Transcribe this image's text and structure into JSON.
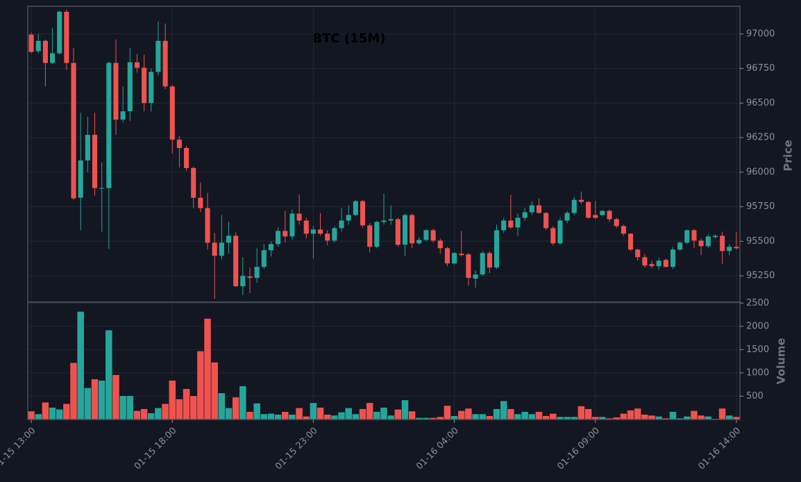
{
  "chart_data": {
    "type": "candlestick",
    "title": "BTC (15M)",
    "ylabel": "Price",
    "up_color": "#26a69a",
    "down_color": "#ef5350",
    "grid": true,
    "ylim": [
      95060,
      97200
    ],
    "yticks": [
      95250,
      95500,
      95750,
      96000,
      96250,
      96500,
      96750,
      97000
    ],
    "categories": [
      "01-15 13:00",
      null,
      null,
      null,
      null,
      null,
      null,
      null,
      null,
      null,
      null,
      null,
      null,
      null,
      null,
      null,
      null,
      null,
      null,
      null,
      "01-15 18:00",
      null,
      null,
      null,
      null,
      null,
      null,
      null,
      null,
      null,
      null,
      null,
      null,
      null,
      null,
      null,
      null,
      null,
      null,
      null,
      "01-15 23:00",
      null,
      null,
      null,
      null,
      null,
      null,
      null,
      null,
      null,
      null,
      null,
      null,
      null,
      null,
      null,
      null,
      null,
      null,
      null,
      "01-16 04:00",
      null,
      null,
      null,
      null,
      null,
      null,
      null,
      null,
      null,
      null,
      null,
      null,
      null,
      null,
      null,
      null,
      null,
      null,
      null,
      "01-16 09:00",
      null,
      null,
      null,
      null,
      null,
      null,
      null,
      null,
      null,
      null,
      null,
      null,
      null,
      null,
      null,
      null,
      null,
      null,
      null,
      "01-16 14:00"
    ],
    "open": [
      96995,
      96875,
      96950,
      96790,
      96860,
      97160,
      96790,
      95815,
      96085,
      96270,
      95880,
      95885,
      96790,
      96380,
      96440,
      96795,
      96755,
      96500,
      96725,
      96950,
      96620,
      96235,
      96175,
      96030,
      95815,
      95740,
      95490,
      95395,
      95490,
      95540,
      95175,
      95245,
      95235,
      95315,
      95435,
      95480,
      95575,
      95535,
      95700,
      95650,
      95555,
      95585,
      95555,
      95505,
      95595,
      95650,
      95690,
      95790,
      95615,
      95460,
      95640,
      95650,
      95660,
      95475,
      95690,
      95485,
      95510,
      95580,
      95505,
      95450,
      95340,
      95410,
      95405,
      95230,
      95260,
      95415,
      95310,
      95580,
      95650,
      95600,
      95670,
      95710,
      95760,
      95705,
      95595,
      95485,
      95650,
      95705,
      95800,
      95785,
      95690,
      95690,
      95720,
      95660,
      95610,
      95555,
      95440,
      95385,
      95335,
      95320,
      95365,
      95315,
      95440,
      95490,
      95580,
      95505,
      95465,
      95530,
      95540,
      95430,
      95460
    ],
    "high": [
      97010,
      97000,
      96960,
      97045,
      97170,
      97175,
      96900,
      96430,
      96400,
      96430,
      96070,
      96800,
      96960,
      96620,
      96900,
      96855,
      96850,
      96750,
      97090,
      97075,
      96630,
      96260,
      96190,
      96040,
      95925,
      95850,
      95560,
      95690,
      95640,
      95565,
      95385,
      95310,
      95450,
      95480,
      95500,
      95600,
      95720,
      95730,
      95840,
      95670,
      95610,
      95705,
      95580,
      95610,
      95740,
      95760,
      95800,
      95800,
      95630,
      95650,
      95845,
      95760,
      95670,
      95700,
      95700,
      95530,
      95590,
      95590,
      95520,
      95460,
      95420,
      95575,
      95415,
      95290,
      95430,
      95430,
      95620,
      95670,
      95835,
      95700,
      95740,
      95790,
      95810,
      95710,
      95610,
      95670,
      95720,
      95820,
      95860,
      95790,
      95790,
      95725,
      95730,
      95670,
      95620,
      95560,
      95445,
      95410,
      95360,
      95380,
      95375,
      95460,
      95500,
      95585,
      95590,
      95520,
      95550,
      95550,
      95570,
      95480,
      95565
    ],
    "low": [
      96860,
      96860,
      96620,
      96780,
      96850,
      96740,
      95800,
      95580,
      96000,
      95830,
      95570,
      95445,
      96270,
      96360,
      96370,
      96720,
      96440,
      96440,
      96700,
      96600,
      96135,
      96035,
      96010,
      95740,
      95710,
      95440,
      95085,
      95370,
      95410,
      95170,
      95110,
      95125,
      95200,
      95300,
      95390,
      95460,
      95490,
      95510,
      95620,
      95520,
      95375,
      95540,
      95470,
      95490,
      95570,
      95620,
      95680,
      95600,
      95420,
      95450,
      95620,
      95620,
      95460,
      95395,
      95450,
      95475,
      95500,
      95490,
      95410,
      95320,
      95330,
      95390,
      95180,
      95165,
      95250,
      95270,
      95300,
      95560,
      95590,
      95540,
      95650,
      95690,
      95700,
      95580,
      95470,
      95475,
      95630,
      95690,
      95770,
      95665,
      95660,
      95680,
      95640,
      95595,
      95540,
      95430,
      95360,
      95310,
      95305,
      95295,
      95310,
      95300,
      95430,
      95480,
      95450,
      95400,
      95450,
      95520,
      95335,
      95400,
      95440
    ],
    "close": [
      96870,
      96950,
      96790,
      96860,
      97160,
      96790,
      95810,
      96085,
      96270,
      95885,
      95885,
      96790,
      96380,
      96440,
      96795,
      96755,
      96500,
      96725,
      96950,
      96620,
      96235,
      96175,
      96030,
      95815,
      95740,
      95490,
      95395,
      95490,
      95540,
      95175,
      95250,
      95235,
      95315,
      95435,
      95480,
      95575,
      95535,
      95700,
      95650,
      95555,
      95585,
      95555,
      95505,
      95595,
      95650,
      95690,
      95790,
      95615,
      95460,
      95640,
      95650,
      95660,
      95475,
      95690,
      95485,
      95510,
      95580,
      95505,
      95450,
      95340,
      95415,
      95400,
      95235,
      95260,
      95415,
      95310,
      95580,
      95650,
      95600,
      95670,
      95710,
      95760,
      95705,
      95595,
      95485,
      95650,
      95705,
      95800,
      95785,
      95670,
      95670,
      95720,
      95660,
      95610,
      95555,
      95440,
      95385,
      95325,
      95320,
      95360,
      95315,
      95440,
      95490,
      95580,
      95505,
      95465,
      95535,
      95540,
      95430,
      95460,
      95450
    ],
    "volume": {
      "label": "Volume",
      "ylim": [
        0,
        2520
      ],
      "yticks": [
        500,
        1000,
        1500,
        2000,
        2500
      ],
      "values": [
        180,
        120,
        370,
        260,
        220,
        340,
        1220,
        2320,
        680,
        870,
        840,
        1920,
        960,
        510,
        510,
        190,
        230,
        140,
        250,
        340,
        840,
        440,
        660,
        510,
        1470,
        2170,
        1230,
        570,
        250,
        480,
        720,
        170,
        350,
        120,
        130,
        110,
        170,
        110,
        250,
        70,
        360,
        260,
        110,
        90,
        160,
        250,
        120,
        230,
        360,
        170,
        260,
        90,
        220,
        420,
        180,
        40,
        40,
        40,
        60,
        300,
        80,
        190,
        240,
        120,
        120,
        80,
        230,
        400,
        230,
        120,
        170,
        120,
        170,
        80,
        130,
        60,
        60,
        60,
        290,
        230,
        60,
        60,
        30,
        50,
        130,
        200,
        240,
        110,
        90,
        70,
        30,
        170,
        30,
        70,
        190,
        90,
        70,
        20,
        240,
        90,
        60
      ]
    }
  }
}
